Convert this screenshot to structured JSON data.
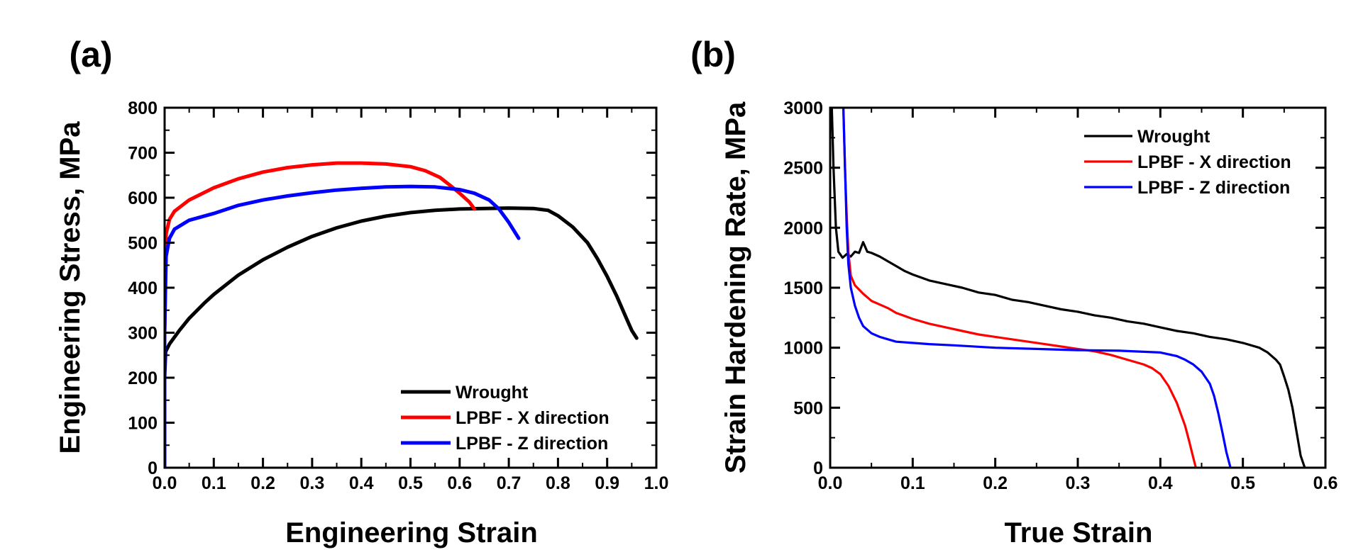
{
  "chart_data": [
    {
      "panel": "(a)",
      "type": "line",
      "xlabel": "Engineering Strain",
      "ylabel": "Engineering Stress, MPa",
      "xlim": [
        0,
        1.0
      ],
      "ylim": [
        0,
        800
      ],
      "xticks": [
        "0.0",
        "0.1",
        "0.2",
        "0.3",
        "0.4",
        "0.5",
        "0.6",
        "0.7",
        "0.8",
        "0.9",
        "1.0"
      ],
      "yticks": [
        "0",
        "100",
        "200",
        "300",
        "400",
        "500",
        "600",
        "700",
        "800"
      ],
      "legend_position": "bottom-right",
      "series": [
        {
          "name": "Wrought",
          "color": "#000000",
          "x": [
            0.0,
            0.0,
            0.002,
            0.01,
            0.03,
            0.05,
            0.08,
            0.1,
            0.15,
            0.2,
            0.25,
            0.3,
            0.35,
            0.4,
            0.45,
            0.5,
            0.55,
            0.6,
            0.65,
            0.7,
            0.75,
            0.78,
            0.8,
            0.83,
            0.86,
            0.88,
            0.9,
            0.92,
            0.94,
            0.95,
            0.96
          ],
          "y": [
            0,
            200,
            258,
            275,
            305,
            332,
            365,
            385,
            428,
            462,
            490,
            514,
            533,
            548,
            559,
            567,
            572,
            575,
            576,
            577,
            576,
            572,
            560,
            535,
            500,
            465,
            425,
            380,
            330,
            305,
            288
          ]
        },
        {
          "name": "LPBF - X direction",
          "color": "#ff0000",
          "x": [
            0.0,
            0.0,
            0.003,
            0.01,
            0.02,
            0.05,
            0.1,
            0.15,
            0.2,
            0.25,
            0.3,
            0.35,
            0.4,
            0.45,
            0.5,
            0.53,
            0.56,
            0.58,
            0.6,
            0.62,
            0.63
          ],
          "y": [
            0,
            300,
            520,
            552,
            570,
            595,
            622,
            642,
            657,
            667,
            673,
            677,
            677,
            675,
            669,
            660,
            645,
            628,
            610,
            590,
            575
          ]
        },
        {
          "name": "LPBF - Z direction",
          "color": "#0000ff",
          "x": [
            0.0,
            0.0,
            0.003,
            0.01,
            0.02,
            0.05,
            0.1,
            0.15,
            0.2,
            0.25,
            0.3,
            0.35,
            0.4,
            0.45,
            0.5,
            0.55,
            0.6,
            0.63,
            0.66,
            0.68,
            0.7,
            0.72
          ],
          "y": [
            0,
            300,
            470,
            510,
            530,
            550,
            565,
            583,
            595,
            604,
            611,
            617,
            621,
            624,
            625,
            624,
            618,
            610,
            595,
            575,
            545,
            510
          ]
        }
      ]
    },
    {
      "panel": "(b)",
      "type": "line",
      "xlabel": "True Strain",
      "ylabel": "Strain Hardening Rate, MPa",
      "xlim": [
        0,
        0.6
      ],
      "ylim": [
        0,
        3000
      ],
      "xticks": [
        "0.0",
        "0.1",
        "0.2",
        "0.3",
        "0.4",
        "0.5",
        "0.6"
      ],
      "yticks": [
        "0",
        "500",
        "1000",
        "1500",
        "2000",
        "2500",
        "3000"
      ],
      "legend_position": "top-right",
      "series": [
        {
          "name": "Wrought",
          "color": "#000000",
          "x": [
            0.002,
            0.004,
            0.007,
            0.01,
            0.015,
            0.02,
            0.025,
            0.03,
            0.035,
            0.04,
            0.045,
            0.05,
            0.06,
            0.07,
            0.08,
            0.09,
            0.1,
            0.12,
            0.14,
            0.16,
            0.18,
            0.2,
            0.22,
            0.24,
            0.26,
            0.28,
            0.3,
            0.32,
            0.34,
            0.36,
            0.38,
            0.4,
            0.42,
            0.44,
            0.46,
            0.48,
            0.5,
            0.52,
            0.53,
            0.54,
            0.545,
            0.55,
            0.555,
            0.56,
            0.565,
            0.57,
            0.575
          ],
          "y": [
            3000,
            2500,
            2000,
            1800,
            1750,
            1780,
            1760,
            1800,
            1790,
            1880,
            1800,
            1790,
            1760,
            1720,
            1680,
            1640,
            1610,
            1560,
            1530,
            1500,
            1460,
            1440,
            1400,
            1380,
            1350,
            1320,
            1300,
            1270,
            1250,
            1220,
            1200,
            1170,
            1140,
            1120,
            1090,
            1070,
            1040,
            1000,
            960,
            900,
            860,
            760,
            650,
            500,
            300,
            100,
            0
          ]
        },
        {
          "name": "LPBF - X direction",
          "color": "#ff0000",
          "x": [
            0.016,
            0.018,
            0.02,
            0.022,
            0.025,
            0.03,
            0.04,
            0.05,
            0.06,
            0.07,
            0.08,
            0.1,
            0.12,
            0.14,
            0.16,
            0.18,
            0.2,
            0.22,
            0.24,
            0.26,
            0.28,
            0.3,
            0.32,
            0.34,
            0.36,
            0.38,
            0.39,
            0.4,
            0.41,
            0.42,
            0.43,
            0.435,
            0.44,
            0.443
          ],
          "y": [
            3000,
            2500,
            2100,
            1800,
            1600,
            1520,
            1450,
            1390,
            1360,
            1330,
            1290,
            1240,
            1200,
            1170,
            1140,
            1110,
            1090,
            1070,
            1050,
            1030,
            1010,
            990,
            970,
            940,
            900,
            860,
            830,
            780,
            680,
            540,
            350,
            220,
            80,
            0
          ]
        },
        {
          "name": "LPBF - Z direction",
          "color": "#0000ff",
          "x": [
            0.016,
            0.018,
            0.02,
            0.022,
            0.025,
            0.03,
            0.035,
            0.04,
            0.05,
            0.06,
            0.07,
            0.08,
            0.1,
            0.12,
            0.15,
            0.2,
            0.25,
            0.3,
            0.35,
            0.4,
            0.42,
            0.43,
            0.44,
            0.45,
            0.46,
            0.465,
            0.47,
            0.475,
            0.48,
            0.485
          ],
          "y": [
            3000,
            2500,
            2000,
            1700,
            1500,
            1350,
            1250,
            1180,
            1120,
            1090,
            1070,
            1050,
            1040,
            1030,
            1020,
            1000,
            990,
            980,
            975,
            960,
            930,
            900,
            860,
            800,
            700,
            600,
            460,
            300,
            130,
            0
          ]
        }
      ]
    }
  ]
}
